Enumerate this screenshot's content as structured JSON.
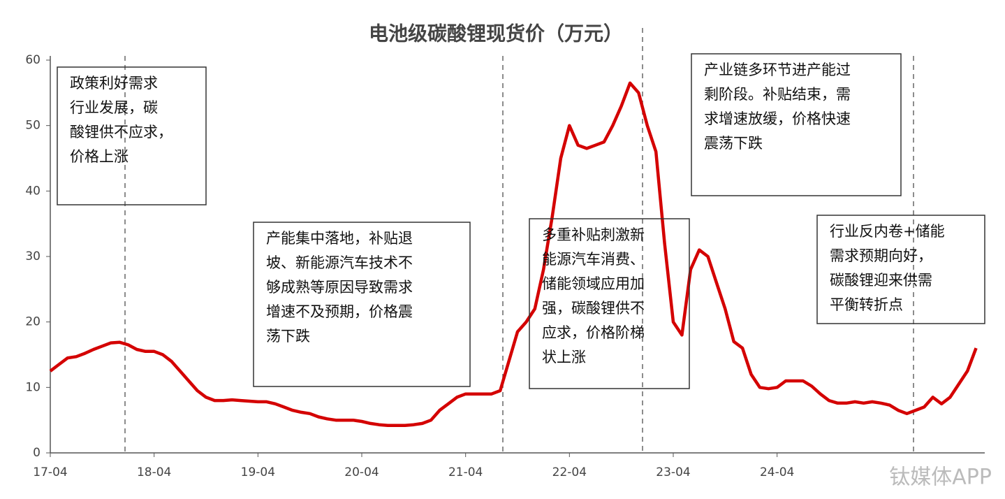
{
  "chart_data": {
    "type": "line",
    "title": "电池级碳酸锂现货价（万元）",
    "x": [
      "17-04",
      "17-05",
      "17-06",
      "17-07",
      "17-08",
      "17-09",
      "17-10",
      "17-11",
      "17-12",
      "18-01",
      "18-02",
      "18-03",
      "18-04",
      "18-05",
      "18-06",
      "18-07",
      "18-08",
      "18-09",
      "18-10",
      "18-11",
      "18-12",
      "19-01",
      "19-02",
      "19-03",
      "19-04",
      "19-05",
      "19-06",
      "19-07",
      "19-08",
      "19-09",
      "19-10",
      "19-11",
      "19-12",
      "20-01",
      "20-02",
      "20-03",
      "20-04",
      "20-05",
      "20-06",
      "20-07",
      "20-08",
      "20-09",
      "20-10",
      "20-11",
      "20-12",
      "21-01",
      "21-02",
      "21-03",
      "21-04",
      "21-05",
      "21-06",
      "21-07",
      "21-08",
      "21-09",
      "21-10",
      "21-11",
      "21-12",
      "22-01",
      "22-02",
      "22-03",
      "22-04",
      "22-05",
      "22-06",
      "22-07",
      "22-08",
      "22-09",
      "22-10",
      "22-11",
      "22-12",
      "23-01",
      "23-02",
      "23-03",
      "23-04",
      "23-05",
      "23-06",
      "23-07",
      "23-08",
      "23-09",
      "23-10",
      "23-11",
      "23-12",
      "24-01",
      "24-02",
      "24-03",
      "24-04",
      "24-05",
      "24-06",
      "24-07",
      "24-08",
      "24-09",
      "24-10",
      "24-11",
      "24-12",
      "25-01",
      "25-02",
      "25-03",
      "25-04",
      "25-05",
      "25-06",
      "25-07",
      "25-08",
      "25-09",
      "25-10",
      "25-11",
      "25-12",
      "26-01",
      "26-02",
      "26-03"
    ],
    "values": [
      12.5,
      13.5,
      14.5,
      14.7,
      15.2,
      15.8,
      16.3,
      16.8,
      16.9,
      16.5,
      15.8,
      15.5,
      15.5,
      15.0,
      14.0,
      12.5,
      11.0,
      9.5,
      8.5,
      8.0,
      8.0,
      8.1,
      8.0,
      7.9,
      7.8,
      7.8,
      7.5,
      7.0,
      6.5,
      6.2,
      6.0,
      5.5,
      5.2,
      5.0,
      5.0,
      5.0,
      4.8,
      4.5,
      4.3,
      4.2,
      4.2,
      4.2,
      4.3,
      4.5,
      5.0,
      6.5,
      7.5,
      8.5,
      9.0,
      9.0,
      9.0,
      9.0,
      9.5,
      14,
      18.5,
      20,
      22,
      28,
      36,
      45,
      50,
      47,
      46.5,
      47,
      47.5,
      50,
      53,
      56.5,
      55,
      50,
      46,
      32,
      20,
      18,
      28,
      31,
      30,
      26,
      22,
      17,
      16,
      12,
      10,
      9.8,
      10,
      11,
      11,
      11,
      10.2,
      9.0,
      8.0,
      7.6,
      7.6,
      7.8,
      7.6,
      7.8,
      7.6,
      7.3,
      6.5,
      6.0,
      6.5,
      7.0,
      8.5,
      7.5,
      8.5,
      10.5,
      12.5,
      16
    ],
    "color": "#d40000",
    "xlim": [
      "17-04",
      "26-04"
    ],
    "xticks": [
      "17-04",
      "18-04",
      "19-04",
      "20-04",
      "21-04",
      "22-04",
      "23-04",
      "24-04"
    ],
    "ylim": [
      0,
      60
    ],
    "yticks": [
      0,
      10,
      20,
      30,
      40,
      50,
      60
    ],
    "annotations": [
      [
        "政策利好需求",
        "行业发展，碳",
        "酸锂供不应求，",
        "价格上涨"
      ],
      [
        "产能集中落地，补贴退",
        "坡、新能源汽车技术不",
        "够成熟等原因导致需求",
        "增速不及预期，价格震",
        "荡下跌"
      ],
      [
        "多重补贴刺激新",
        "能源汽车消费、",
        "储能领域应用加",
        "强，碳酸锂供不",
        "应求，价格阶梯",
        "状上涨"
      ],
      [
        "产业链多环节进产能过",
        "剩阶段。补贴结束，需",
        "求增速放缓，价格快速",
        "震荡下跌"
      ],
      [
        "行业反内卷+储能",
        "需求预期向好，",
        "碳酸锂迎来供需",
        "平衡转折点"
      ]
    ],
    "watermark": "钛媒体APP"
  }
}
